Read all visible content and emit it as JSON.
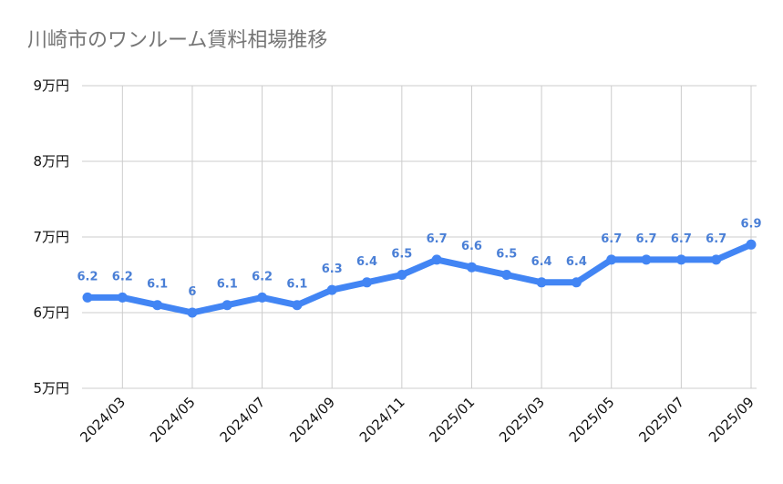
{
  "chart_data": {
    "type": "line",
    "title": "川崎市のワンルーム賃料相場推移",
    "xlabel": "",
    "ylabel": "",
    "ylim": [
      5,
      9
    ],
    "yticks": [
      {
        "value": 9,
        "label": "9万円"
      },
      {
        "value": 8,
        "label": "8万円"
      },
      {
        "value": 7,
        "label": "7万円"
      },
      {
        "value": 6,
        "label": "6万円"
      },
      {
        "value": 5,
        "label": "5万円"
      }
    ],
    "x": [
      "2024/02",
      "2024/03",
      "2024/04",
      "2024/05",
      "2024/06",
      "2024/07",
      "2024/08",
      "2024/09",
      "2024/10",
      "2024/11",
      "2024/12",
      "2025/01",
      "2025/02",
      "2025/03",
      "2025/04",
      "2025/05",
      "2025/06",
      "2025/07",
      "2025/08",
      "2025/09"
    ],
    "xtick_labels": [
      "2024/03",
      "2024/05",
      "2024/07",
      "2024/09",
      "2024/11",
      "2025/01",
      "2025/03",
      "2025/05",
      "2025/07",
      "2025/09"
    ],
    "series": [
      {
        "values": [
          6.2,
          6.2,
          6.1,
          6,
          6.1,
          6.2,
          6.1,
          6.3,
          6.4,
          6.5,
          6.7,
          6.6,
          6.5,
          6.4,
          6.4,
          6.7,
          6.7,
          6.7,
          6.7,
          6.9
        ],
        "data_labels": [
          "6.2",
          "6.2",
          "6.1",
          "6",
          "6.1",
          "6.2",
          "6.1",
          "6.3",
          "6.4",
          "6.5",
          "6.7",
          "6.6",
          "6.5",
          "6.4",
          "6.4",
          "6.7",
          "6.7",
          "6.7",
          "6.7",
          "6.9"
        ]
      }
    ],
    "grid": true,
    "legend": "none",
    "colors": {
      "line": "#4285f4",
      "label": "#4a7fd6",
      "grid": "#cccccc",
      "title": "#757575"
    }
  }
}
